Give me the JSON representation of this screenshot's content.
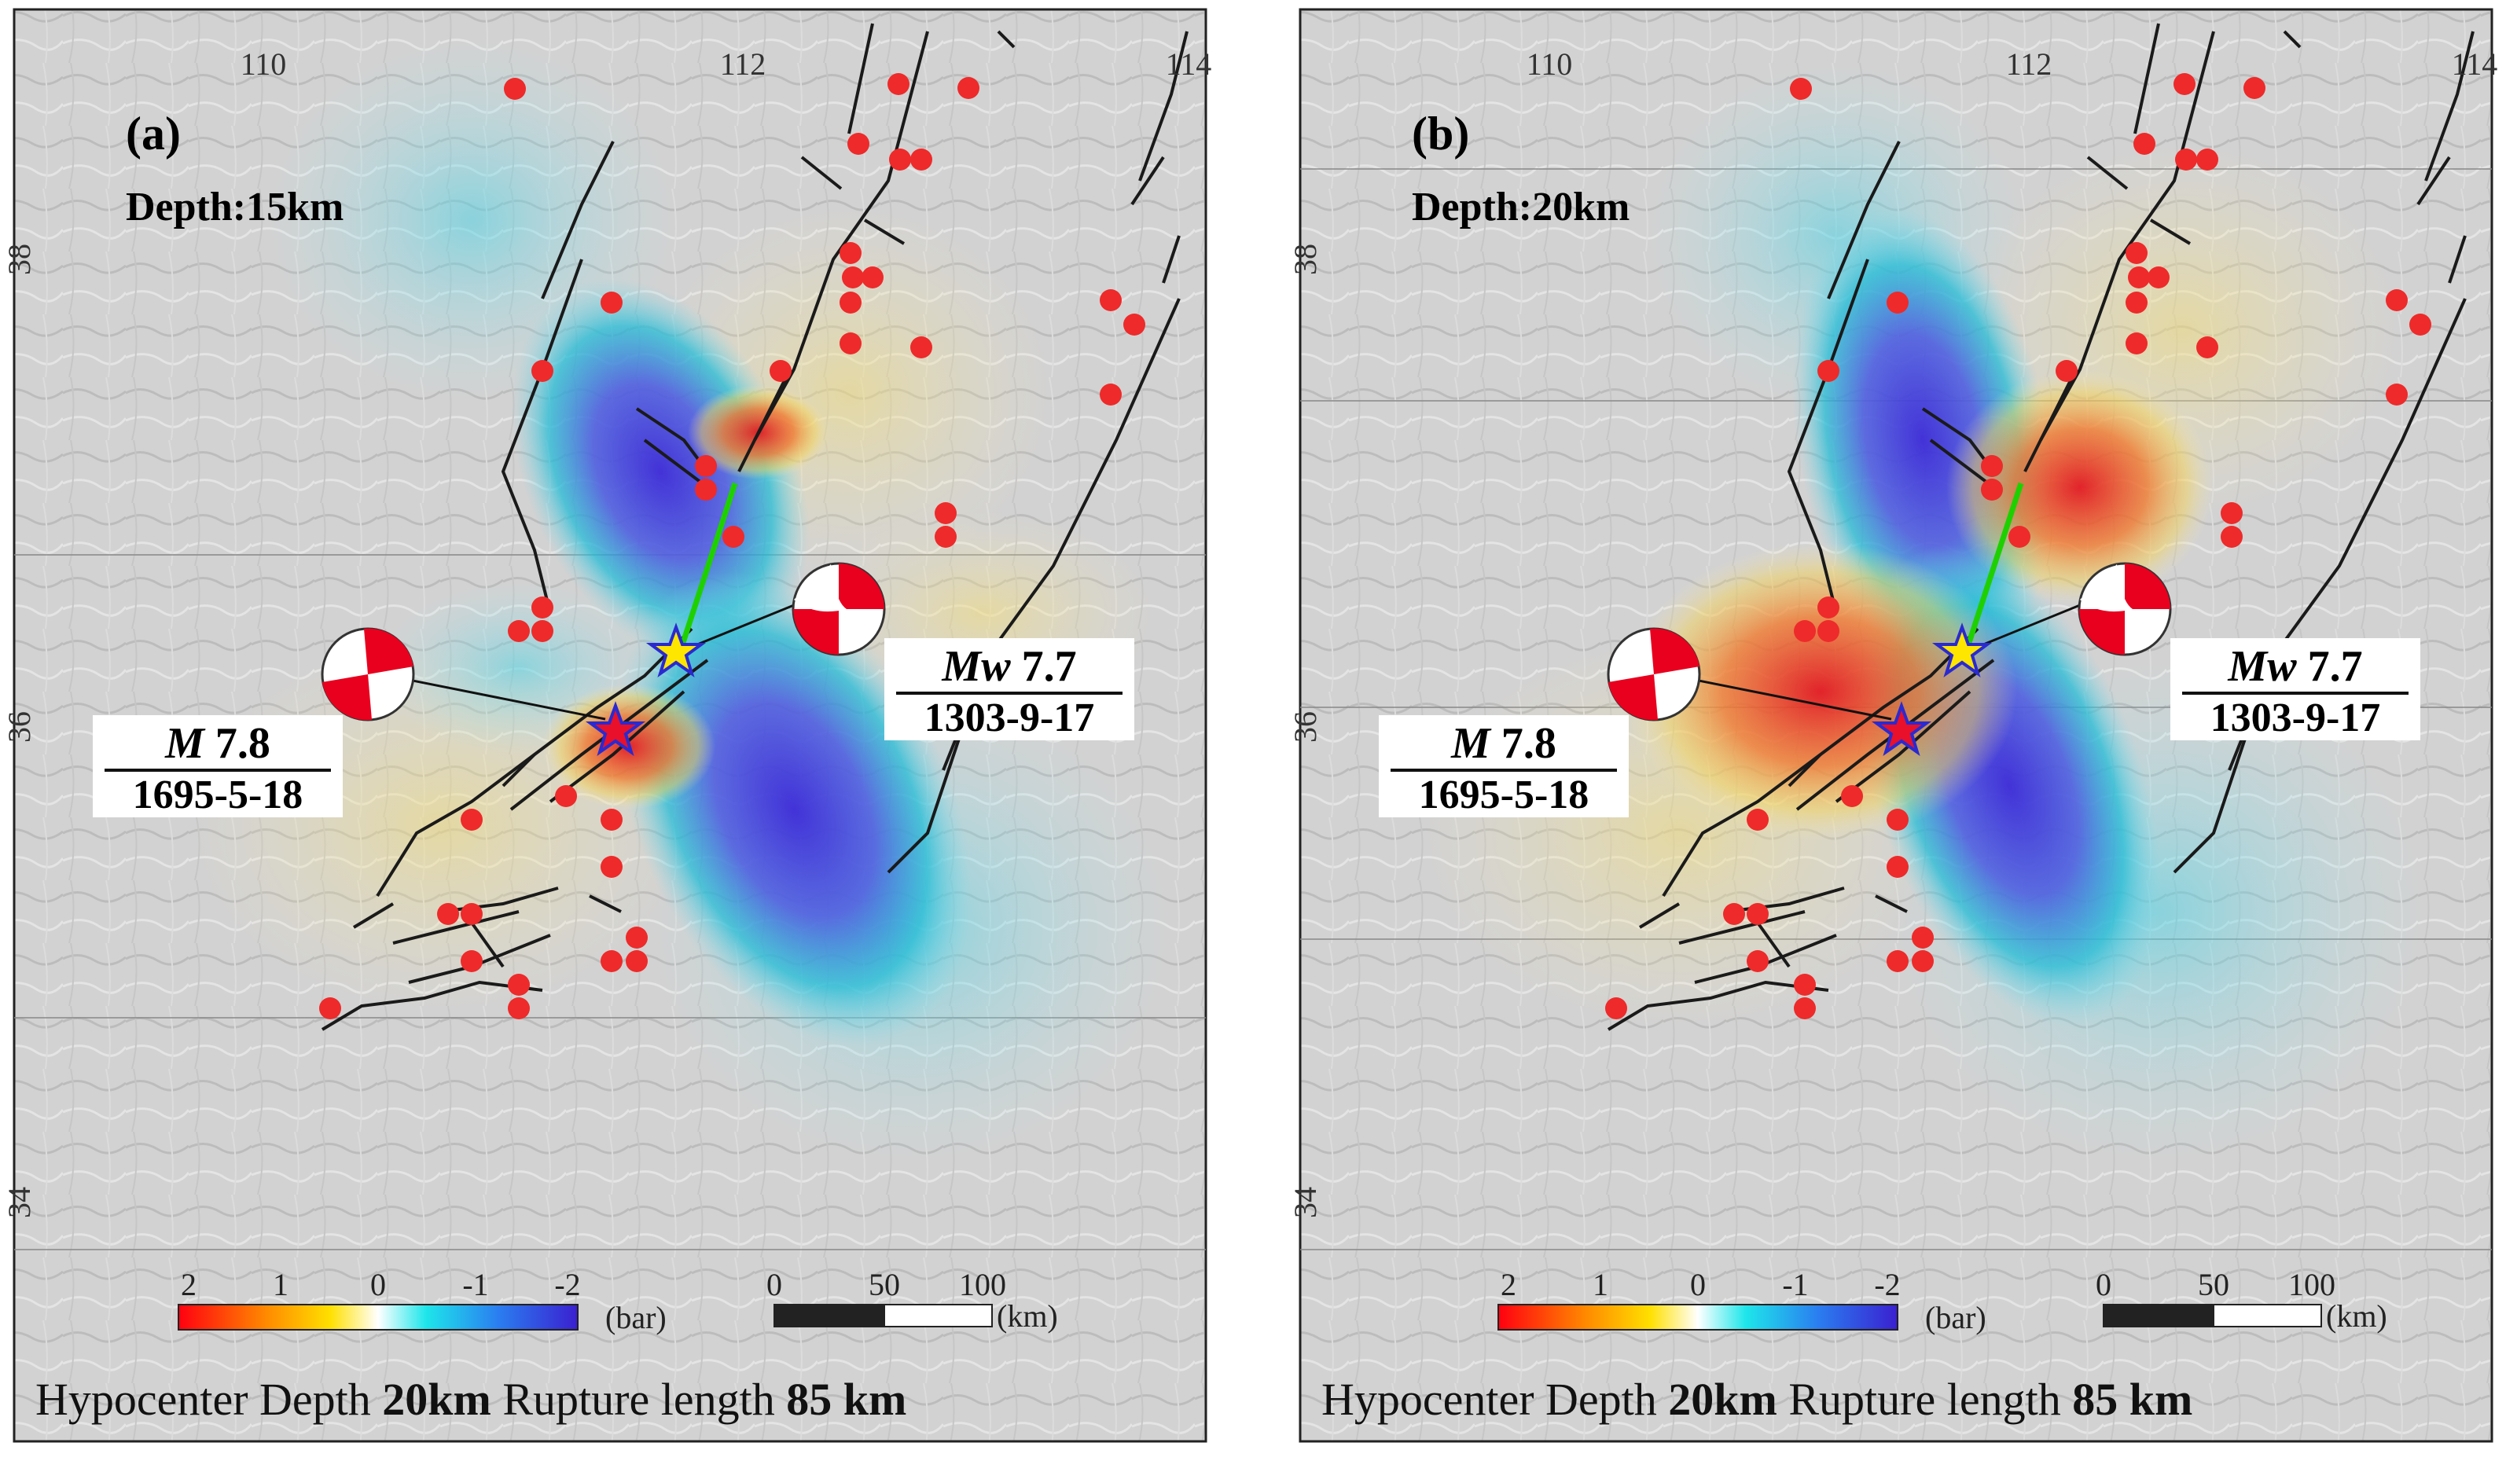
{
  "panels": [
    {
      "id": "a",
      "label": "(a)",
      "depth_label": "Depth:15km",
      "lon_ticks": [
        "110",
        "112",
        "114"
      ],
      "lat_ticks": [
        "38",
        "36",
        "34"
      ],
      "eq1": {
        "mag_prefix": "Mw",
        "mag_value": "7.7",
        "date": "1303-9-17"
      },
      "eq2": {
        "mag_prefix": "M",
        "mag_value": "7.8",
        "date": "1695-5-18"
      },
      "colorbar": {
        "ticks": [
          "2",
          "1",
          "0",
          "-1",
          "-2"
        ],
        "unit": "(bar)"
      },
      "scalebar": {
        "ticks": [
          "0",
          "50",
          "100"
        ],
        "unit": "(km)"
      },
      "footer": {
        "label1": "Hypocenter Depth",
        "value1": "20km",
        "label2": "Rupture length",
        "value2": "85 km"
      }
    },
    {
      "id": "b",
      "label": "(b)",
      "depth_label": "Depth:20km",
      "lon_ticks": [
        "110",
        "112",
        "114"
      ],
      "lat_ticks": [
        "38",
        "36",
        "34"
      ],
      "eq1": {
        "mag_prefix": "Mw",
        "mag_value": "7.7",
        "date": "1303-9-17"
      },
      "eq2": {
        "mag_prefix": "M",
        "mag_value": "7.8",
        "date": "1695-5-18"
      },
      "colorbar": {
        "ticks": [
          "2",
          "1",
          "0",
          "-1",
          "-2"
        ],
        "unit": "(bar)"
      },
      "scalebar": {
        "ticks": [
          "0",
          "50",
          "100"
        ],
        "unit": "(km)"
      },
      "footer": {
        "label1": "Hypocenter Depth",
        "value1": "20km",
        "label2": "Rupture length",
        "value2": "85 km"
      }
    }
  ],
  "colors": {
    "positive": "#e8001e",
    "negative": "#3a2fd6",
    "neutral": "#ffffff",
    "event_dot": "#ee2a2a",
    "rupture": "#1fd000",
    "epicenter_1303": "#ffe600",
    "epicenter_1695": "#e8102a"
  }
}
